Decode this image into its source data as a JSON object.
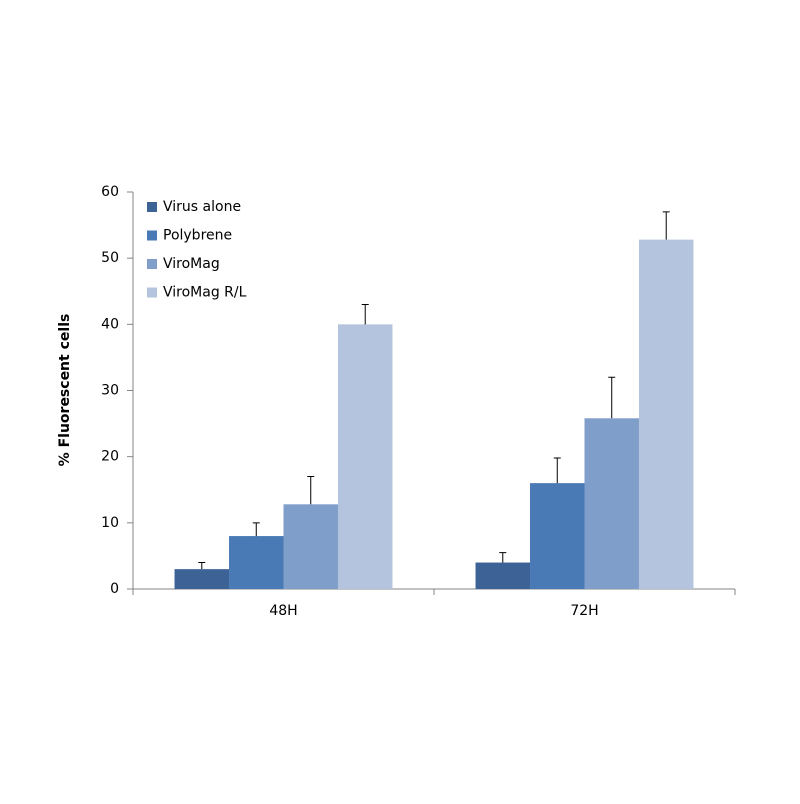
{
  "chart_data": {
    "type": "bar",
    "y_label": "% Fluorescent cells",
    "categories": [
      "48H",
      "72H"
    ],
    "series": [
      {
        "name": "Virus alone",
        "color": "#3c6296",
        "values": [
          3,
          4
        ],
        "errors": [
          1,
          1.5
        ]
      },
      {
        "name": "Polybrene",
        "color": "#4a7ab5",
        "values": [
          8,
          16
        ],
        "errors": [
          2,
          3.8
        ]
      },
      {
        "name": "ViroMag",
        "color": "#7f9ec9",
        "values": [
          12.8,
          25.8
        ],
        "errors": [
          4.2,
          6.2
        ]
      },
      {
        "name": "ViroMag R/L",
        "color": "#b4c4de",
        "values": [
          40,
          52.8
        ],
        "errors": [
          3,
          4.2
        ]
      }
    ],
    "ylim": [
      0,
      60
    ],
    "yticks": [
      0,
      10,
      20,
      30,
      40,
      50,
      60
    ],
    "error_bars": "upper",
    "legend": "top-left",
    "grid": false
  }
}
